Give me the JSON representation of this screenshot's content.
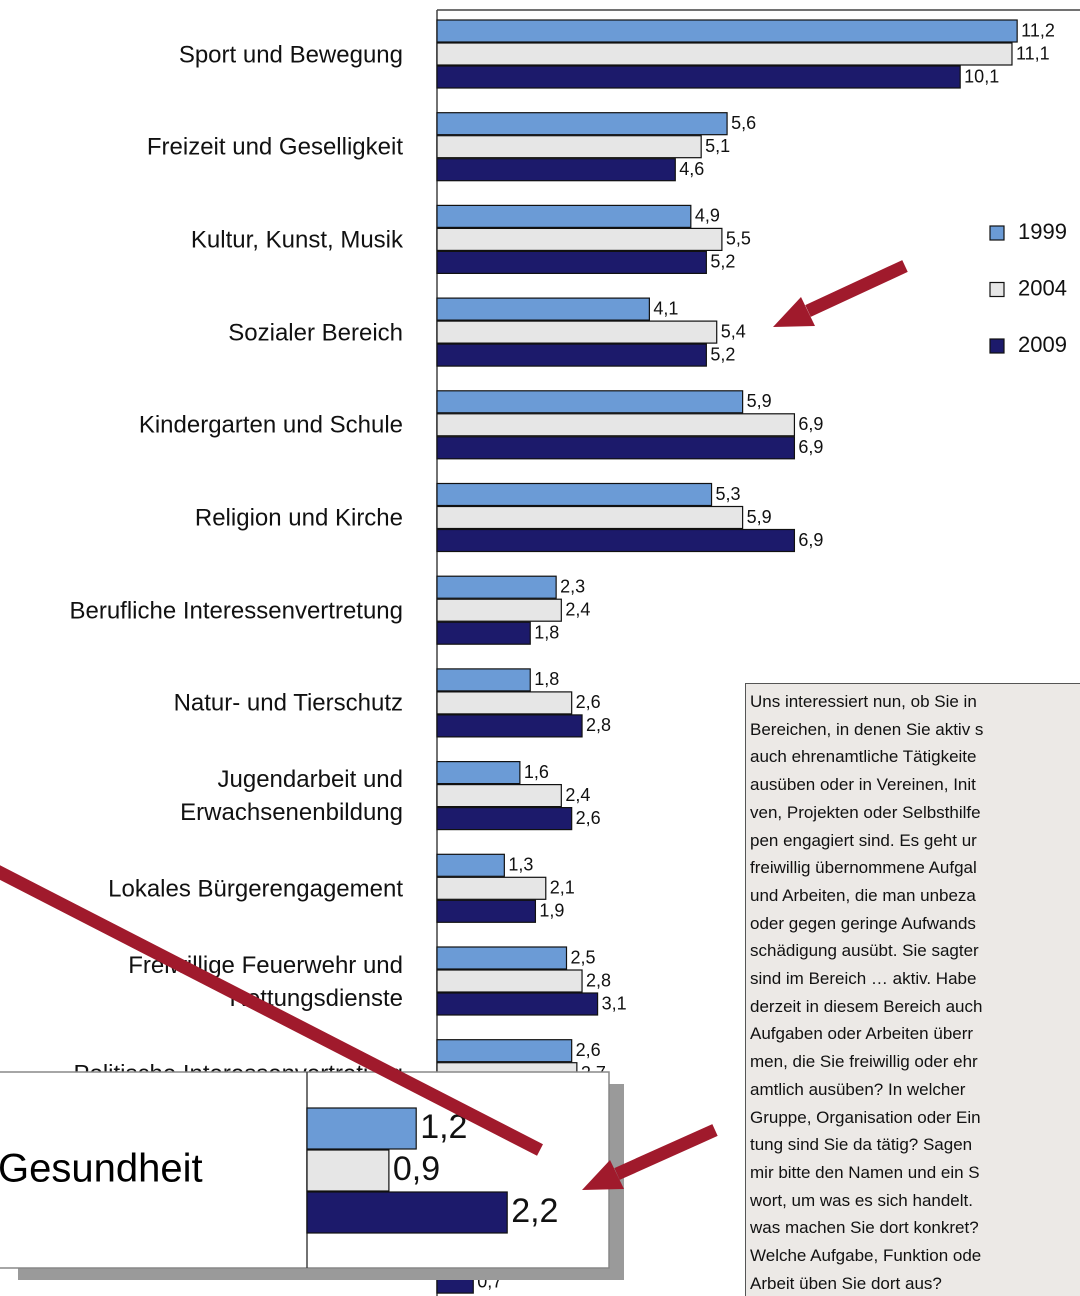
{
  "chart_data": [
    {
      "type": "bar",
      "orientation": "horizontal",
      "categories": [
        "Sport und Bewegung",
        "Freizeit und Geselligkeit",
        "Kultur, Kunst, Musik",
        "Sozialer Bereich",
        "Kindergarten und Schule",
        "Religion und Kirche",
        "Berufliche Interessenvertretung",
        "Natur- und Tierschutz",
        "Jugendarbeit und\nErwachsenenbildung",
        "Lokales Bürgerengagement",
        "Freiwillige Feuerwehr und\nRettungsdienste",
        "Politische Interessenvertretung",
        null,
        null
      ],
      "series": [
        {
          "name": "1999",
          "color": "#6b9bd6",
          "values": [
            11.2,
            5.6,
            4.9,
            4.1,
            5.9,
            5.3,
            2.3,
            1.8,
            1.6,
            1.3,
            2.5,
            2.6,
            null,
            null
          ],
          "value_labels": [
            "11,2",
            "5,6",
            "4,9",
            "4,1",
            "5,9",
            "5,3",
            "2,3",
            "1,8",
            "1,6",
            "1,3",
            "2,5",
            "2,6",
            null,
            null
          ]
        },
        {
          "name": "2004",
          "color": "#e6e6e6",
          "values": [
            11.1,
            5.1,
            5.5,
            5.4,
            6.9,
            5.9,
            2.4,
            2.6,
            2.4,
            2.1,
            2.8,
            2.7,
            null,
            null
          ],
          "value_labels": [
            "11,1",
            "5,1",
            "5,5",
            "5,4",
            "6,9",
            "5,9",
            "2,4",
            "2,6",
            "2,4",
            "2,1",
            "2,8",
            "2,7",
            null,
            null
          ]
        },
        {
          "name": "2009",
          "color": "#1c1a6b",
          "values": [
            10.1,
            4.6,
            5.2,
            5.2,
            6.9,
            6.9,
            1.8,
            2.8,
            2.6,
            1.9,
            3.1,
            null,
            null,
            0.7
          ],
          "value_labels": [
            "10,1",
            "4,6",
            "5,2",
            "5,2",
            "6,9",
            "6,9",
            "1,8",
            "2,8",
            "2,6",
            "1,9",
            "3,1",
            null,
            null,
            "0,7"
          ]
        }
      ],
      "legend": "right"
    },
    {
      "type": "bar",
      "orientation": "horizontal",
      "categories": [
        "Gesundheit"
      ],
      "series": [
        {
          "color": "#6b9bd6",
          "values": [
            1.2
          ],
          "value_labels": [
            "1,2"
          ]
        },
        {
          "color": "#e6e6e6",
          "values": [
            0.9
          ],
          "value_labels": [
            "0,9"
          ]
        },
        {
          "color": "#1c1a6b",
          "values": [
            2.2
          ],
          "value_labels": [
            "2,2"
          ]
        }
      ]
    }
  ],
  "text_box": {
    "lines": [
      "Uns interessiert nun, ob Sie in",
      "Bereichen, in denen Sie aktiv s",
      "auch ehrenamtliche Tätigkeite",
      "ausüben oder in Vereinen, Init",
      "ven, Projekten oder Selbsthilfe",
      "pen engagiert sind. Es geht ur",
      "freiwillig übernommene Aufgal",
      "und Arbeiten, die man unbeza",
      "oder gegen geringe Aufwands",
      "schädigung ausübt. Sie sagter",
      "sind im Bereich … aktiv. Habe",
      "derzeit in diesem Bereich auch",
      "Aufgaben oder Arbeiten überr",
      "men, die Sie freiwillig oder ehr",
      "amtlich ausüben? In welcher",
      "Gruppe, Organisation oder Ein",
      "tung sind Sie da tätig? Sagen",
      "mir bitte den Namen und ein S",
      "wort, um was es sich handelt.",
      "was machen Sie dort konkret?",
      "Welche Aufgabe, Funktion ode",
      "Arbeit üben Sie dort aus?"
    ]
  }
}
